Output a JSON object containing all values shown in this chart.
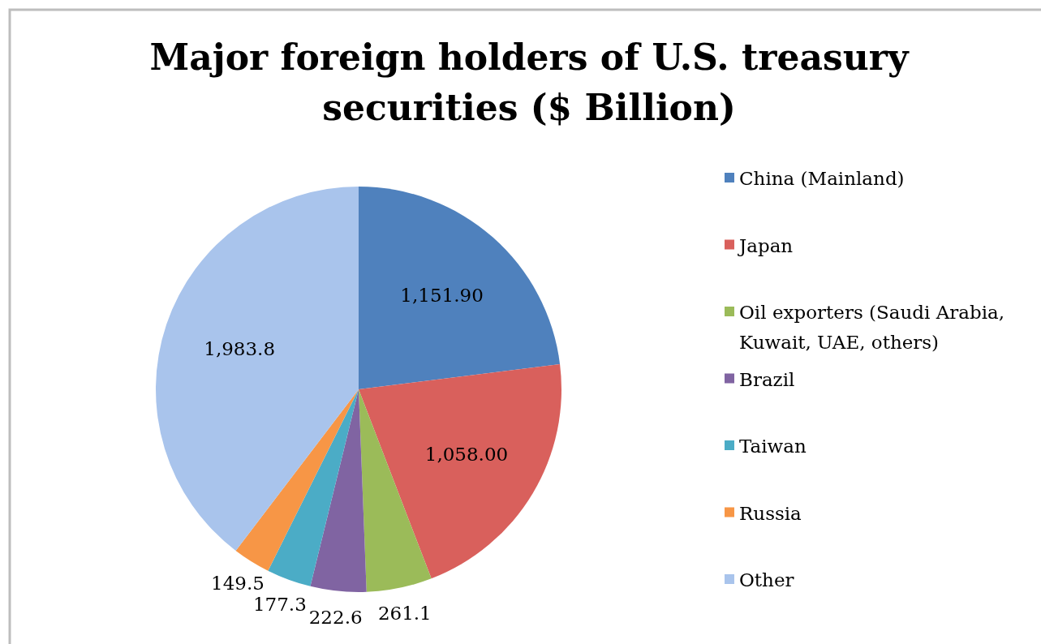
{
  "chart_data": {
    "type": "pie",
    "title": "Major foreign holders of U.S. treasury securities ($ Billion)",
    "categories": [
      "China (Mainland)",
      "Japan",
      "Oil exporters (Saudi Arabia, Kuwait, UAE, others)",
      "Brazil",
      "Taiwan",
      "Russia",
      "Other"
    ],
    "values": [
      1151.9,
      1058.0,
      261.1,
      222.6,
      177.3,
      149.5,
      1983.8
    ],
    "value_labels": [
      "1,151.90",
      "1,058.00",
      "261.1",
      "222.6",
      "177.3",
      "149.5",
      "1,983.8"
    ],
    "colors": [
      "#4f81bd",
      "#d9605c",
      "#9bbb59",
      "#8064a2",
      "#4bacc6",
      "#f79646",
      "#a9c4ec"
    ],
    "legend": "right"
  }
}
